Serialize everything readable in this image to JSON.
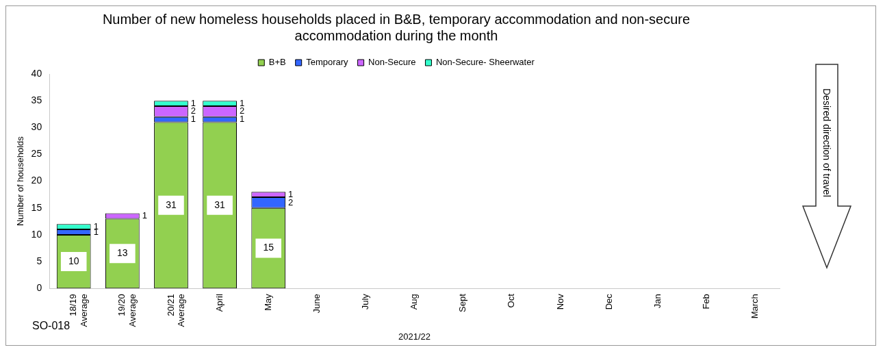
{
  "chart_data": {
    "type": "bar",
    "stacked": true,
    "title": "Number of new homeless households placed in B&B, temporary accommodation and non-secure accommodation during the month",
    "xlabel": "2021/22",
    "ylabel": "Number of households",
    "categories": [
      "18/19 Average",
      "19/20 Average",
      "20/21 Average",
      "April",
      "May",
      "June",
      "July",
      "Aug",
      "Sept",
      "Oct",
      "Nov",
      "Dec",
      "Jan",
      "Feb",
      "March"
    ],
    "series": [
      {
        "name": "B+B",
        "color": "#92d050",
        "values": [
          10,
          13,
          31,
          31,
          15,
          null,
          null,
          null,
          null,
          null,
          null,
          null,
          null,
          null,
          null
        ],
        "value_labels": [
          "10",
          "13",
          "31",
          "31",
          "15",
          null,
          null,
          null,
          null,
          null,
          null,
          null,
          null,
          null,
          null
        ]
      },
      {
        "name": "Temporary",
        "color": "#3366ff",
        "values": [
          1,
          0,
          1,
          1,
          2,
          null,
          null,
          null,
          null,
          null,
          null,
          null,
          null,
          null,
          null
        ],
        "value_labels": [
          "1",
          null,
          "1",
          "1",
          "2",
          null,
          null,
          null,
          null,
          null,
          null,
          null,
          null,
          null,
          null
        ]
      },
      {
        "name": "Non-Secure",
        "color": "#cc66ff",
        "values": [
          0,
          1,
          2,
          2,
          1,
          null,
          null,
          null,
          null,
          null,
          null,
          null,
          null,
          null,
          null
        ],
        "value_labels": [
          null,
          "1",
          "2",
          "2",
          "1",
          null,
          null,
          null,
          null,
          null,
          null,
          null,
          null,
          null,
          null
        ]
      },
      {
        "name": "Non-Secure- Sheerwater",
        "color": "#33ffcc",
        "values": [
          1,
          0,
          1,
          1,
          0,
          null,
          null,
          null,
          null,
          null,
          null,
          null,
          null,
          null,
          null
        ],
        "value_labels": [
          "1",
          null,
          "1",
          "1",
          null,
          null,
          null,
          null,
          null,
          null,
          null,
          null,
          null,
          null,
          null
        ]
      }
    ],
    "ylim": [
      0,
      40
    ],
    "yticks": [
      0,
      5,
      10,
      15,
      20,
      25,
      30,
      35,
      40
    ],
    "grid": false,
    "legend": "top",
    "annotations": [
      "SO-018",
      "Desired direction of travel"
    ]
  }
}
